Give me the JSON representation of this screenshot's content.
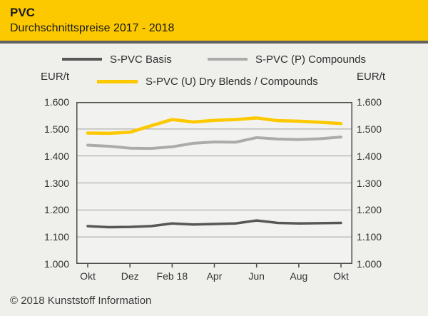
{
  "header": {
    "title": "PVC",
    "subtitle": "Durchschnittspreise 2017 - 2018"
  },
  "axis_units": {
    "left": "EUR/t",
    "right": "EUR/t"
  },
  "legend": [
    {
      "label": "S-PVC Basis",
      "color": "#575757"
    },
    {
      "label": "S-PVC (P) Compounds",
      "color": "#ABABAB"
    },
    {
      "label": "S-PVC (U) Dry Blends / Compounds",
      "color": "#FCC800"
    }
  ],
  "footer": {
    "copyright": "© 2018 Kunststoff Information"
  },
  "colors": {
    "header_bg": "#FCC900",
    "page_bg": "#EFF0EC",
    "separator": "#616161",
    "plot_bg": "#F2F3F0",
    "plot_border": "#4A4A4A",
    "gridline": "#9FA0A0",
    "title_text": "#1A1A1A",
    "label_text": "#333333"
  },
  "chart_data": {
    "type": "line",
    "title": "PVC Durchschnittspreise 2017 - 2018",
    "ylabel": "EUR/t",
    "ylim": [
      1000,
      1600
    ],
    "grid": true,
    "legend_position": "top",
    "y_tick_labels": [
      "1.600",
      "1.500",
      "1.400",
      "1.300",
      "1.200",
      "1.100",
      "1.000"
    ],
    "x_tick_labels": [
      "Okt",
      "Dez",
      "Feb 18",
      "Apr",
      "Jun",
      "Aug",
      "Okt"
    ],
    "x": [
      "Okt 17",
      "Nov 17",
      "Dez 17",
      "Jan 18",
      "Feb 18",
      "Mär 18",
      "Apr 18",
      "Mai 18",
      "Jun 18",
      "Jul 18",
      "Aug 18",
      "Sep 18",
      "Okt 18"
    ],
    "series": [
      {
        "name": "S-PVC Basis",
        "color": "#575757",
        "stroke_width": 3.5,
        "values": [
          1140,
          1136,
          1137,
          1140,
          1150,
          1146,
          1148,
          1150,
          1161,
          1152,
          1150,
          1151,
          1152
        ]
      },
      {
        "name": "S-PVC (P) Compounds",
        "color": "#ABABAB",
        "stroke_width": 4,
        "values": [
          1440,
          1436,
          1429,
          1428,
          1434,
          1447,
          1452,
          1451,
          1468,
          1463,
          1461,
          1464,
          1470
        ]
      },
      {
        "name": "S-PVC (U) Dry Blends / Compounds",
        "color": "#FCC800",
        "stroke_width": 4.5,
        "values": [
          1485,
          1484,
          1488,
          1512,
          1535,
          1526,
          1532,
          1535,
          1541,
          1531,
          1529,
          1525,
          1520
        ]
      }
    ]
  }
}
